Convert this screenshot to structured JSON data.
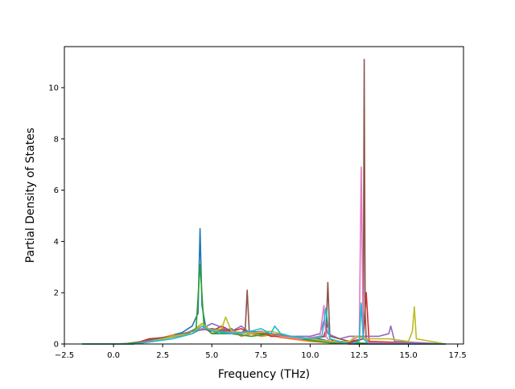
{
  "chart_data": {
    "type": "line",
    "title": "",
    "xlabel": "Frequency (THz)",
    "ylabel": "Partial Density of States",
    "xlim": [
      -2.5,
      17.8
    ],
    "ylim": [
      0,
      11.6
    ],
    "xticks": [
      "−2.5",
      "0.0",
      "2.5",
      "5.0",
      "7.5",
      "10.0",
      "12.5",
      "15.0",
      "17.5"
    ],
    "xtick_values": [
      -2.5,
      0.0,
      2.5,
      5.0,
      7.5,
      10.0,
      12.5,
      15.0,
      17.5
    ],
    "yticks": [
      "0",
      "2",
      "4",
      "6",
      "8",
      "10"
    ],
    "ytick_values": [
      0,
      2,
      4,
      6,
      8,
      10
    ],
    "grid": false,
    "legend": "none",
    "series": [
      {
        "color": "#1f77b4",
        "x": [
          -1.6,
          0.0,
          1.0,
          2.0,
          2.8,
          3.5,
          4.0,
          4.3,
          4.4,
          4.5,
          4.7,
          5.0,
          5.5,
          6.0,
          6.5,
          7.0,
          7.5,
          8.0,
          8.5,
          9.0,
          9.5,
          10.0,
          10.5,
          11.0,
          12.0,
          13.0,
          14.0,
          15.0,
          16.9
        ],
        "y": [
          0,
          0,
          0.03,
          0.15,
          0.3,
          0.45,
          0.7,
          1.2,
          4.5,
          1.5,
          0.6,
          0.4,
          0.5,
          0.6,
          0.3,
          0.4,
          0.5,
          0.3,
          0.4,
          0.3,
          0.2,
          0.15,
          0.2,
          0.1,
          0.0,
          0.0,
          0.0,
          0.0,
          0
        ]
      },
      {
        "color": "#ff7f0e",
        "x": [
          -1.6,
          0.5,
          1.5,
          2.5,
          3.0,
          3.5,
          4.0,
          4.5,
          5.0,
          5.5,
          6.0,
          6.5,
          7.0,
          7.5,
          8.0,
          8.5,
          9.0,
          10.0,
          11.0,
          12.0,
          16.9
        ],
        "y": [
          0,
          0.0,
          0.1,
          0.25,
          0.35,
          0.3,
          0.5,
          0.8,
          0.4,
          0.6,
          0.5,
          0.3,
          0.4,
          0.3,
          0.35,
          0.25,
          0.2,
          0.1,
          0.05,
          0.0,
          0
        ]
      },
      {
        "color": "#2ca02c",
        "x": [
          -1.6,
          0.5,
          1.5,
          2.5,
          3.5,
          4.2,
          4.4,
          4.6,
          5.0,
          6.0,
          7.0,
          8.0,
          9.0,
          10.0,
          11.0,
          16.9
        ],
        "y": [
          0,
          0,
          0.1,
          0.2,
          0.35,
          0.6,
          3.1,
          0.7,
          0.4,
          0.4,
          0.3,
          0.4,
          0.25,
          0.15,
          0.05,
          0
        ]
      },
      {
        "color": "#d62728",
        "x": [
          -1.6,
          1.0,
          1.8,
          2.5,
          3.2,
          4.0,
          4.5,
          5.0,
          5.5,
          6.0,
          6.5,
          7.0,
          7.5,
          8.0,
          9.0,
          10.0,
          10.7,
          10.9,
          11.0,
          11.2,
          12.0,
          12.7,
          12.85,
          13.0,
          16.9
        ],
        "y": [
          0,
          0,
          0.2,
          0.25,
          0.3,
          0.5,
          0.6,
          0.5,
          0.7,
          0.5,
          0.6,
          0.4,
          0.5,
          0.3,
          0.3,
          0.2,
          0.3,
          0.8,
          0.2,
          0.1,
          0.05,
          0.2,
          2.0,
          0.1,
          0
        ]
      },
      {
        "color": "#9467bd",
        "x": [
          -1.6,
          1.0,
          2.0,
          3.0,
          4.0,
          4.5,
          5.0,
          6.0,
          6.5,
          7.0,
          8.0,
          9.0,
          10.0,
          10.5,
          10.7,
          10.9,
          11.5,
          12.0,
          13.0,
          13.5,
          14.0,
          14.1,
          14.3,
          16.9
        ],
        "y": [
          0,
          0,
          0.1,
          0.3,
          0.4,
          0.6,
          0.8,
          0.5,
          0.7,
          0.4,
          0.4,
          0.3,
          0.3,
          0.4,
          0.9,
          0.4,
          0.2,
          0.3,
          0.3,
          0.3,
          0.4,
          0.7,
          0.1,
          0
        ]
      },
      {
        "color": "#8c564b",
        "x": [
          -1.6,
          1.0,
          2.0,
          3.0,
          4.0,
          5.0,
          6.0,
          6.5,
          6.7,
          6.8,
          6.9,
          7.2,
          8.0,
          9.0,
          10.0,
          10.8,
          10.9,
          11.0,
          12.0,
          12.7,
          12.75,
          12.8,
          12.85,
          13.0,
          16.9
        ],
        "y": [
          0,
          0,
          0.2,
          0.3,
          0.5,
          0.6,
          0.5,
          0.4,
          0.6,
          2.1,
          0.5,
          0.4,
          0.4,
          0.3,
          0.2,
          0.3,
          2.4,
          0.3,
          0.1,
          0.2,
          11.1,
          1.2,
          0.2,
          0.05,
          0
        ]
      },
      {
        "color": "#e377c2",
        "x": [
          -1.6,
          1.0,
          2.5,
          3.5,
          4.5,
          5.5,
          6.5,
          7.5,
          8.5,
          9.5,
          10.5,
          10.7,
          10.8,
          11.0,
          12.0,
          12.5,
          12.6,
          12.7,
          13.0,
          16.9
        ],
        "y": [
          0,
          0,
          0.2,
          0.4,
          0.6,
          0.5,
          0.4,
          0.5,
          0.3,
          0.2,
          0.3,
          1.5,
          0.3,
          0.1,
          0.1,
          0.3,
          6.9,
          0.3,
          0.05,
          0
        ]
      },
      {
        "color": "#7f7f7f",
        "x": [
          -1.6,
          1.0,
          2.0,
          3.0,
          4.0,
          5.0,
          6.0,
          7.0,
          8.0,
          9.0,
          10.0,
          11.0,
          12.0,
          16.9
        ],
        "y": [
          0,
          0,
          0.1,
          0.3,
          0.5,
          0.6,
          0.4,
          0.5,
          0.4,
          0.3,
          0.2,
          0.1,
          0.0,
          0
        ]
      },
      {
        "color": "#bcbd22",
        "x": [
          -1.6,
          1.0,
          2.0,
          3.0,
          4.0,
          4.5,
          5.0,
          5.5,
          5.7,
          6.0,
          7.0,
          8.0,
          8.5,
          9.0,
          10.0,
          11.0,
          12.0,
          12.3,
          13.0,
          14.0,
          15.0,
          15.2,
          15.3,
          15.4,
          16.9
        ],
        "y": [
          0,
          0,
          0.1,
          0.3,
          0.4,
          0.8,
          0.5,
          0.6,
          1.05,
          0.5,
          0.4,
          0.5,
          0.4,
          0.3,
          0.2,
          0.1,
          0.1,
          0.3,
          0.2,
          0.2,
          0.1,
          0.5,
          1.45,
          0.2,
          0
        ]
      },
      {
        "color": "#17becf",
        "x": [
          -1.6,
          1.0,
          2.0,
          3.0,
          4.0,
          4.5,
          5.0,
          6.0,
          7.0,
          7.5,
          8.0,
          8.2,
          8.5,
          9.0,
          10.0,
          10.6,
          10.8,
          11.0,
          12.0,
          12.5,
          12.6,
          12.7,
          13.0,
          16.9
        ],
        "y": [
          0,
          0,
          0.1,
          0.2,
          0.4,
          0.7,
          0.5,
          0.4,
          0.5,
          0.6,
          0.4,
          0.7,
          0.4,
          0.3,
          0.2,
          0.3,
          1.4,
          0.2,
          0.0,
          0.1,
          1.6,
          0.2,
          0.0,
          0
        ]
      }
    ]
  }
}
